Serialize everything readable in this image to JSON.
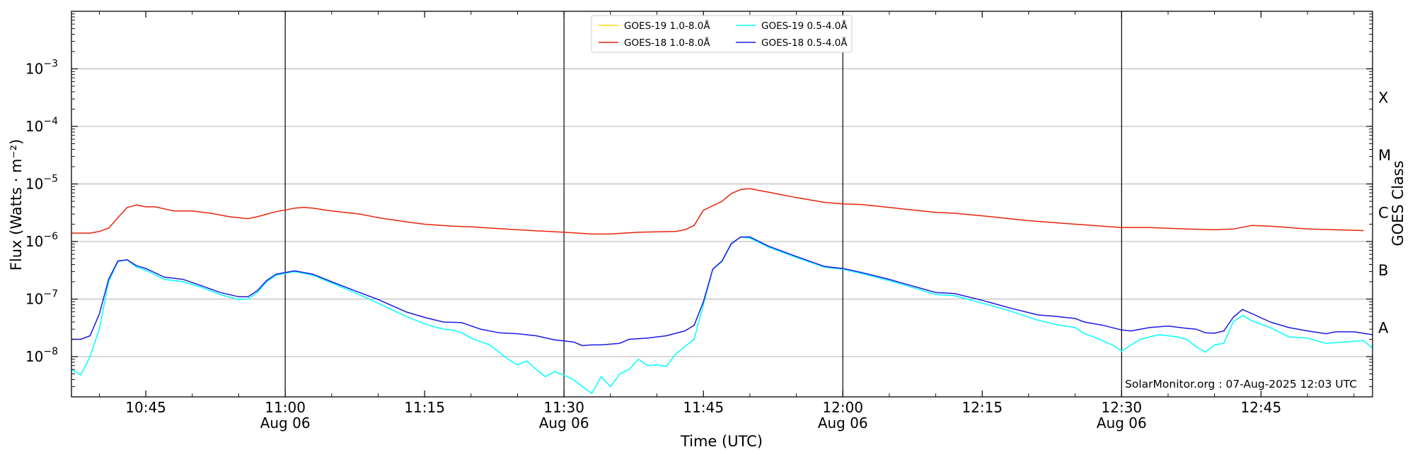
{
  "chart_data": {
    "type": "line",
    "xlabel": "Time (UTC)",
    "ylabel": "Flux (Watts · m⁻²)",
    "y2label": "GOES Class",
    "yscale": "log",
    "ylim": [
      2e-09,
      0.01
    ],
    "xlim": [
      "2025-08-06 10:37",
      "2025-08-06 12:57"
    ],
    "grid": "horizontal",
    "legend_position": "top-center",
    "x_ticks": [
      {
        "time": "10:45",
        "date": ""
      },
      {
        "time": "11:00",
        "date": "Aug 06"
      },
      {
        "time": "11:15",
        "date": ""
      },
      {
        "time": "11:30",
        "date": "Aug 06"
      },
      {
        "time": "11:45",
        "date": ""
      },
      {
        "time": "12:00",
        "date": "Aug 06"
      },
      {
        "time": "12:15",
        "date": ""
      },
      {
        "time": "12:30",
        "date": "Aug 06"
      },
      {
        "time": "12:45",
        "date": ""
      }
    ],
    "y_ticks": [
      {
        "value": 1e-08,
        "label": "10",
        "exponent": "−8"
      },
      {
        "value": 1e-07,
        "label": "10",
        "exponent": "−7"
      },
      {
        "value": 1e-06,
        "label": "10",
        "exponent": "−6"
      },
      {
        "value": 1e-05,
        "label": "10",
        "exponent": "−5"
      },
      {
        "value": 0.0001,
        "label": "10",
        "exponent": "−4"
      },
      {
        "value": 0.001,
        "label": "10",
        "exponent": "−3"
      }
    ],
    "goes_classes": [
      {
        "label": "A",
        "value": 3.16e-08
      },
      {
        "label": "B",
        "value": 3.16e-07
      },
      {
        "label": "C",
        "value": 3.16e-06
      },
      {
        "label": "M",
        "value": 3.16e-05
      },
      {
        "label": "X",
        "value": 0.000316
      }
    ],
    "vertical_lines": [
      "11:00",
      "11:30",
      "12:00",
      "12:30"
    ],
    "annotation": "SolarMonitor.org : 07-Aug-2025 12:03 UTC",
    "series": [
      {
        "name": "GOES-19 1.0-8.0Å",
        "color": "#FFD700",
        "points": []
      },
      {
        "name": "GOES-18 1.0-8.0Å",
        "color": "#E8240B",
        "points": [
          [
            "10:37",
            1.4e-06
          ],
          [
            "10:39",
            1.4e-06
          ],
          [
            "10:40",
            1.5e-06
          ],
          [
            "10:41",
            1.7e-06
          ],
          [
            "10:42",
            2.6e-06
          ],
          [
            "10:43",
            3.9e-06
          ],
          [
            "10:44",
            4.3e-06
          ],
          [
            "10:45",
            4e-06
          ],
          [
            "10:46",
            4e-06
          ],
          [
            "10:48",
            3.4e-06
          ],
          [
            "10:50",
            3.4e-06
          ],
          [
            "10:52",
            3.1e-06
          ],
          [
            "10:54",
            2.7e-06
          ],
          [
            "10:56",
            2.5e-06
          ],
          [
            "10:57",
            2.7e-06
          ],
          [
            "10:59",
            3.3e-06
          ],
          [
            "11:01",
            3.8e-06
          ],
          [
            "11:02",
            3.9e-06
          ],
          [
            "11:03",
            3.8e-06
          ],
          [
            "11:05",
            3.4e-06
          ],
          [
            "11:08",
            3e-06
          ],
          [
            "11:10",
            2.6e-06
          ],
          [
            "11:13",
            2.2e-06
          ],
          [
            "11:15",
            2e-06
          ],
          [
            "11:18",
            1.85e-06
          ],
          [
            "11:20",
            1.8e-06
          ],
          [
            "11:25",
            1.6e-06
          ],
          [
            "11:30",
            1.45e-06
          ],
          [
            "11:33",
            1.35e-06
          ],
          [
            "11:35",
            1.35e-06
          ],
          [
            "11:38",
            1.45e-06
          ],
          [
            "11:42",
            1.5e-06
          ],
          [
            "11:43",
            1.6e-06
          ],
          [
            "11:44",
            1.9e-06
          ],
          [
            "11:45",
            3.5e-06
          ],
          [
            "11:47",
            5e-06
          ],
          [
            "11:48",
            6.8e-06
          ],
          [
            "11:49",
            8e-06
          ],
          [
            "11:50",
            8.3e-06
          ],
          [
            "11:52",
            7.2e-06
          ],
          [
            "11:55",
            5.8e-06
          ],
          [
            "11:58",
            4.8e-06
          ],
          [
            "12:00",
            4.5e-06
          ],
          [
            "12:02",
            4.4e-06
          ],
          [
            "12:05",
            3.9e-06
          ],
          [
            "12:10",
            3.2e-06
          ],
          [
            "12:12",
            3.1e-06
          ],
          [
            "12:15",
            2.8e-06
          ],
          [
            "12:20",
            2.3e-06
          ],
          [
            "12:25",
            2e-06
          ],
          [
            "12:30",
            1.75e-06
          ],
          [
            "12:33",
            1.75e-06
          ],
          [
            "12:37",
            1.65e-06
          ],
          [
            "12:40",
            1.6e-06
          ],
          [
            "12:42",
            1.65e-06
          ],
          [
            "12:44",
            1.9e-06
          ],
          [
            "12:46",
            1.85e-06
          ],
          [
            "12:50",
            1.65e-06
          ],
          [
            "12:53",
            1.6e-06
          ],
          [
            "12:56",
            1.55e-06
          ]
        ]
      },
      {
        "name": "GOES-19 0.5-4.0Å",
        "color": "#00FFFF",
        "points": [
          [
            "10:37",
            6e-09
          ],
          [
            "10:38",
            4.8e-09
          ],
          [
            "10:39",
            1e-08
          ],
          [
            "10:40",
            3e-08
          ],
          [
            "10:41",
            2e-07
          ],
          [
            "10:42",
            4.5e-07
          ],
          [
            "10:43",
            4.8e-07
          ],
          [
            "10:44",
            3.6e-07
          ],
          [
            "10:45",
            3.2e-07
          ],
          [
            "10:47",
            2.2e-07
          ],
          [
            "10:49",
            2e-07
          ],
          [
            "10:51",
            1.6e-07
          ],
          [
            "10:53",
            1.2e-07
          ],
          [
            "10:55",
            9.8e-08
          ],
          [
            "10:56",
            1e-07
          ],
          [
            "10:57",
            1.3e-07
          ],
          [
            "10:58",
            2e-07
          ],
          [
            "10:59",
            2.6e-07
          ],
          [
            "11:01",
            3e-07
          ],
          [
            "11:03",
            2.6e-07
          ],
          [
            "11:05",
            1.9e-07
          ],
          [
            "11:07",
            1.4e-07
          ],
          [
            "11:10",
            8.5e-08
          ],
          [
            "11:13",
            5e-08
          ],
          [
            "11:15",
            3.7e-08
          ],
          [
            "11:17",
            3e-08
          ],
          [
            "11:18",
            2.9e-08
          ],
          [
            "11:19",
            2.6e-08
          ],
          [
            "11:20",
            2.1e-08
          ],
          [
            "11:22",
            1.6e-08
          ],
          [
            "11:23",
            1.2e-08
          ],
          [
            "11:24",
            9e-09
          ],
          [
            "11:25",
            7.2e-09
          ],
          [
            "11:26",
            8.4e-09
          ],
          [
            "11:27",
            6e-09
          ],
          [
            "11:28",
            4.5e-09
          ],
          [
            "11:29",
            5.5e-09
          ],
          [
            "11:30",
            4.8e-09
          ],
          [
            "11:31",
            4e-09
          ],
          [
            "11:32",
            3e-09
          ],
          [
            "11:33",
            2.3e-09
          ],
          [
            "11:34",
            4.5e-09
          ],
          [
            "11:35",
            3e-09
          ],
          [
            "11:36",
            5e-09
          ],
          [
            "11:37",
            6e-09
          ],
          [
            "11:38",
            9e-09
          ],
          [
            "11:39",
            7e-09
          ],
          [
            "11:40",
            7.2e-09
          ],
          [
            "11:41",
            6.8e-09
          ],
          [
            "11:42",
            1.1e-08
          ],
          [
            "11:43",
            1.5e-08
          ],
          [
            "11:44",
            2e-08
          ],
          [
            "11:45",
            8e-08
          ],
          [
            "11:46",
            3.3e-07
          ],
          [
            "11:47",
            4.5e-07
          ],
          [
            "11:48",
            9e-07
          ],
          [
            "11:49",
            1.2e-06
          ],
          [
            "11:50",
            1.15e-06
          ],
          [
            "11:52",
            8e-07
          ],
          [
            "11:55",
            5.3e-07
          ],
          [
            "11:58",
            3.6e-07
          ],
          [
            "12:00",
            3.3e-07
          ],
          [
            "12:02",
            2.8e-07
          ],
          [
            "12:05",
            2.1e-07
          ],
          [
            "12:08",
            1.5e-07
          ],
          [
            "12:10",
            1.2e-07
          ],
          [
            "12:12",
            1.15e-07
          ],
          [
            "12:15",
            8.5e-08
          ],
          [
            "12:18",
            6.2e-08
          ],
          [
            "12:21",
            4.3e-08
          ],
          [
            "12:23",
            3.6e-08
          ],
          [
            "12:25",
            3.2e-08
          ],
          [
            "12:26",
            2.5e-08
          ],
          [
            "12:27",
            2.2e-08
          ],
          [
            "12:29",
            1.6e-08
          ],
          [
            "12:30",
            1.25e-08
          ],
          [
            "12:32",
            2e-08
          ],
          [
            "12:34",
            2.4e-08
          ],
          [
            "12:36",
            2.2e-08
          ],
          [
            "12:37",
            2e-08
          ],
          [
            "12:38",
            1.5e-08
          ],
          [
            "12:39",
            1.2e-08
          ],
          [
            "12:40",
            1.6e-08
          ],
          [
            "12:41",
            1.7e-08
          ],
          [
            "12:42",
            4e-08
          ],
          [
            "12:43",
            5.2e-08
          ],
          [
            "12:44",
            4.2e-08
          ],
          [
            "12:46",
            3.2e-08
          ],
          [
            "12:48",
            2.2e-08
          ],
          [
            "12:50",
            2.1e-08
          ],
          [
            "12:52",
            1.7e-08
          ],
          [
            "12:54",
            1.8e-08
          ],
          [
            "12:56",
            1.9e-08
          ],
          [
            "12:57",
            1.4e-08
          ]
        ]
      },
      {
        "name": "GOES-18 0.5-4.0Å",
        "color": "#1A1AE6",
        "points": [
          [
            "10:37",
            2e-08
          ],
          [
            "10:38",
            2e-08
          ],
          [
            "10:39",
            2.3e-08
          ],
          [
            "10:40",
            5.5e-08
          ],
          [
            "10:41",
            2.2e-07
          ],
          [
            "10:42",
            4.6e-07
          ],
          [
            "10:43",
            4.8e-07
          ],
          [
            "10:44",
            3.8e-07
          ],
          [
            "10:45",
            3.4e-07
          ],
          [
            "10:47",
            2.4e-07
          ],
          [
            "10:49",
            2.2e-07
          ],
          [
            "10:51",
            1.7e-07
          ],
          [
            "10:53",
            1.3e-07
          ],
          [
            "10:55",
            1.1e-07
          ],
          [
            "10:56",
            1.1e-07
          ],
          [
            "10:57",
            1.4e-07
          ],
          [
            "10:58",
            2.1e-07
          ],
          [
            "10:59",
            2.7e-07
          ],
          [
            "11:01",
            3.1e-07
          ],
          [
            "11:03",
            2.7e-07
          ],
          [
            "11:05",
            2e-07
          ],
          [
            "11:07",
            1.5e-07
          ],
          [
            "11:10",
            9.8e-08
          ],
          [
            "11:13",
            6e-08
          ],
          [
            "11:15",
            4.8e-08
          ],
          [
            "11:17",
            4e-08
          ],
          [
            "11:19",
            3.9e-08
          ],
          [
            "11:21",
            3e-08
          ],
          [
            "11:23",
            2.6e-08
          ],
          [
            "11:25",
            2.5e-08
          ],
          [
            "11:27",
            2.3e-08
          ],
          [
            "11:29",
            1.95e-08
          ],
          [
            "11:31",
            1.8e-08
          ],
          [
            "11:32",
            1.55e-08
          ],
          [
            "11:33",
            1.6e-08
          ],
          [
            "11:34",
            1.6e-08
          ],
          [
            "11:36",
            1.7e-08
          ],
          [
            "11:37",
            2e-08
          ],
          [
            "11:39",
            2.1e-08
          ],
          [
            "11:41",
            2.3e-08
          ],
          [
            "11:43",
            2.8e-08
          ],
          [
            "11:44",
            3.5e-08
          ],
          [
            "11:45",
            9e-08
          ],
          [
            "11:46",
            3.3e-07
          ],
          [
            "11:47",
            4.6e-07
          ],
          [
            "11:48",
            9.2e-07
          ],
          [
            "11:49",
            1.2e-06
          ],
          [
            "11:50",
            1.2e-06
          ],
          [
            "11:52",
            8.3e-07
          ],
          [
            "11:55",
            5.5e-07
          ],
          [
            "11:58",
            3.7e-07
          ],
          [
            "12:00",
            3.4e-07
          ],
          [
            "12:02",
            2.9e-07
          ],
          [
            "12:05",
            2.2e-07
          ],
          [
            "12:08",
            1.6e-07
          ],
          [
            "12:10",
            1.3e-07
          ],
          [
            "12:12",
            1.25e-07
          ],
          [
            "12:15",
            9.5e-08
          ],
          [
            "12:18",
            7e-08
          ],
          [
            "12:21",
            5.3e-08
          ],
          [
            "12:23",
            5e-08
          ],
          [
            "12:25",
            4.6e-08
          ],
          [
            "12:26",
            4e-08
          ],
          [
            "12:28",
            3.5e-08
          ],
          [
            "12:30",
            2.9e-08
          ],
          [
            "12:31",
            2.8e-08
          ],
          [
            "12:33",
            3.2e-08
          ],
          [
            "12:35",
            3.4e-08
          ],
          [
            "12:37",
            3.1e-08
          ],
          [
            "12:38",
            3e-08
          ],
          [
            "12:39",
            2.6e-08
          ],
          [
            "12:40",
            2.55e-08
          ],
          [
            "12:41",
            2.8e-08
          ],
          [
            "12:42",
            4.8e-08
          ],
          [
            "12:43",
            6.6e-08
          ],
          [
            "12:44",
            5.6e-08
          ],
          [
            "12:46",
            4e-08
          ],
          [
            "12:48",
            3.2e-08
          ],
          [
            "12:50",
            2.8e-08
          ],
          [
            "12:52",
            2.5e-08
          ],
          [
            "12:53",
            2.7e-08
          ],
          [
            "12:55",
            2.7e-08
          ],
          [
            "12:57",
            2.4e-08
          ]
        ]
      }
    ]
  }
}
